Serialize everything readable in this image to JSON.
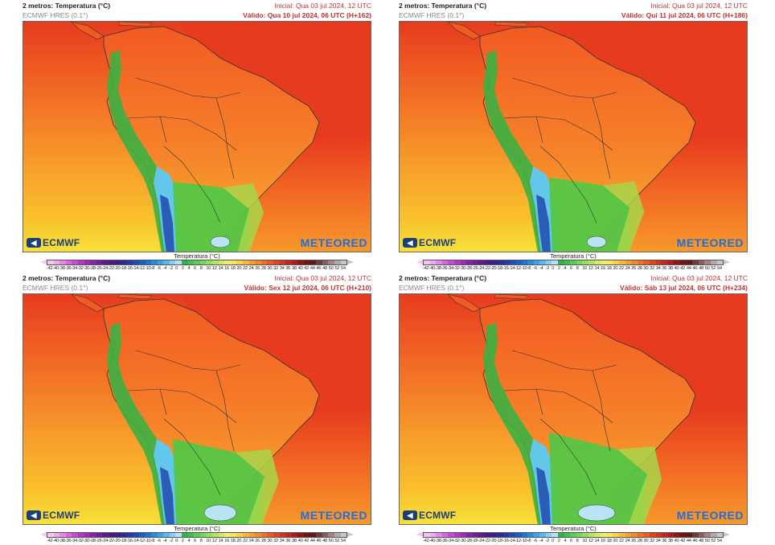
{
  "panels": [
    {
      "title": "2 metros: Temperatura (°C)",
      "model": "ECMWF HRES (0.1°)",
      "initial": "Inicial: Qua 03 jul 2024, 12 UTC",
      "valid": "Válido: Qua 10 jul 2024, 06 UTC (H+162)"
    },
    {
      "title": "2 metros: Temperatura (°C)",
      "model": "ECMWF HRES (0.1°)",
      "initial": "Inicial: Qua 03 jul 2024, 12 UTC",
      "valid": "Válido: Qui 11 jul 2024, 06 UTC (H+186)"
    },
    {
      "title": "2 metros: Temperatura (°C)",
      "model": "ECMWF HRES (0.1°)",
      "initial": "Inicial: Qua 03 jul 2024, 12 UTC",
      "valid": "Válido: Sex 12 jul 2024, 06 UTC (H+210)"
    },
    {
      "title": "2 metros: Temperatura (°C)",
      "model": "ECMWF HRES (0.1°)",
      "initial": "Inicial: Qua 03 jul 2024, 12 UTC",
      "valid": "Válido: Sáb 13 jul 2024, 06 UTC (H+234)"
    }
  ],
  "logos": {
    "left": "ECMWF",
    "right": "METEORED"
  },
  "legend": {
    "title": "Temperatura (°C)",
    "ticks": [
      "-42",
      "-40",
      "-38",
      "-36",
      "-34",
      "-32",
      "-30",
      "-28",
      "-26",
      "-24",
      "-22",
      "-20",
      "-18",
      "-16",
      "-14",
      "-12",
      "-10",
      "-8",
      "-6",
      "-4",
      "-2",
      "0",
      "2",
      "4",
      "6",
      "8",
      "10",
      "12",
      "14",
      "16",
      "18",
      "20",
      "22",
      "24",
      "26",
      "28",
      "30",
      "32",
      "34",
      "36",
      "38",
      "40",
      "42",
      "44",
      "46",
      "48",
      "50",
      "52",
      "54"
    ],
    "colors": [
      "#f6c6f3",
      "#eeaaee",
      "#e489ea",
      "#d865e2",
      "#c84bd6",
      "#b438c8",
      "#9d2bb8",
      "#8624a8",
      "#6e1f9a",
      "#5a1d8e",
      "#481c86",
      "#3a1f8a",
      "#2e2a96",
      "#2438a6",
      "#1d4bb8",
      "#1a5fc8",
      "#1a74d6",
      "#2a8ade",
      "#3aa2e6",
      "#5ab8ee",
      "#86cff2",
      "#b6e2f6",
      "#2fb34a",
      "#3fc050",
      "#58cc56",
      "#76d65a",
      "#96de5e",
      "#b6e462",
      "#d2ea66",
      "#ecef6a",
      "#fbe45a",
      "#fbcf48",
      "#f9b83a",
      "#f6a030",
      "#f3882a",
      "#ef7026",
      "#ea5a22",
      "#e0451e",
      "#d2341c",
      "#c2261c",
      "#ae1c1c",
      "#8e1616",
      "#721414",
      "#5e1a1a",
      "#6e3e3e",
      "#866060",
      "#9e8484",
      "#b6a8a8",
      "#c6c6c6"
    ]
  },
  "map": {
    "colors": {
      "ocean_hot": "#e73b1f",
      "ocean_warm": "#f26a24",
      "ocean_mild": "#f79a2b",
      "ocean_cool": "#f9c12c",
      "ocean_pacific_south": "#f7e23a",
      "land_hot": "#f25a22",
      "land_warm": "#f6822a",
      "andes_green": "#3cb043",
      "andes_cyan": "#62c7e8",
      "andes_blue": "#2a5cb8",
      "south_green": "#55c646",
      "south_yellowgreen": "#a8d64a",
      "cold_spot": "#b9e4f4",
      "borders": "#333333"
    }
  }
}
